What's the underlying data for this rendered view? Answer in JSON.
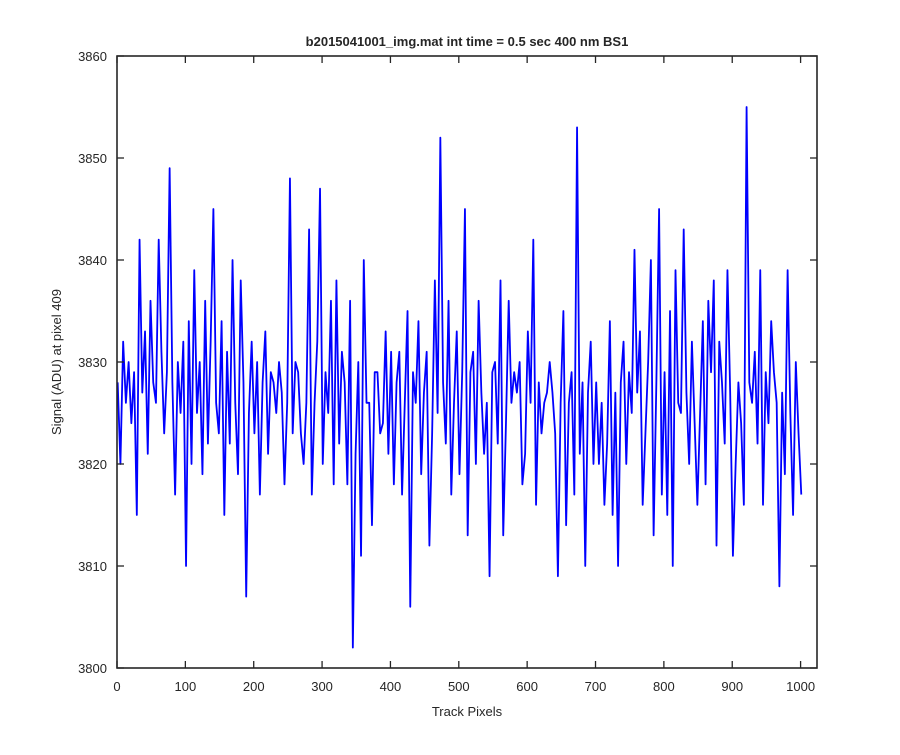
{
  "chart_data": {
    "type": "line",
    "title": "b2015041001_img.mat int time = 0.5 sec  400 nm BS1",
    "xlabel": "Track Pixels",
    "ylabel": "Signal (ADU) at pixel 409",
    "xlim": [
      0,
      1024
    ],
    "ylim": [
      3800,
      3860
    ],
    "x_ticks": [
      0,
      100,
      200,
      300,
      400,
      500,
      600,
      700,
      800,
      900,
      1000
    ],
    "y_ticks": [
      3800,
      3810,
      3820,
      3830,
      3840,
      3850,
      3860
    ],
    "grid": false,
    "line_color": "#0000ff",
    "series": [
      {
        "x_start": 1,
        "x_step": 4,
        "values": [
          3828,
          3820,
          3832,
          3826,
          3830,
          3824,
          3829,
          3815,
          3842,
          3827,
          3833,
          3821,
          3836,
          3828,
          3826,
          3842,
          3831,
          3823,
          3829,
          3849,
          3828,
          3817,
          3830,
          3825,
          3832,
          3810,
          3834,
          3820,
          3839,
          3825,
          3830,
          3819,
          3836,
          3822,
          3832,
          3845,
          3826,
          3823,
          3834,
          3815,
          3831,
          3822,
          3840,
          3826,
          3819,
          3838,
          3828,
          3807,
          3825,
          3832,
          3823,
          3830,
          3817,
          3828,
          3833,
          3821,
          3829,
          3828,
          3825,
          3830,
          3827,
          3818,
          3826,
          3848,
          3823,
          3830,
          3829,
          3823,
          3820,
          3826,
          3843,
          3817,
          3826,
          3832,
          3847,
          3820,
          3829,
          3825,
          3836,
          3818,
          3838,
          3822,
          3831,
          3828,
          3818,
          3836,
          3802,
          3821,
          3830,
          3811,
          3840,
          3826,
          3826,
          3814,
          3829,
          3829,
          3823,
          3824,
          3833,
          3821,
          3831,
          3818,
          3828,
          3831,
          3817,
          3826,
          3835,
          3806,
          3829,
          3826,
          3834,
          3819,
          3827,
          3831,
          3812,
          3823,
          3838,
          3825,
          3852,
          3828,
          3822,
          3836,
          3817,
          3826,
          3833,
          3819,
          3829,
          3845,
          3813,
          3829,
          3831,
          3820,
          3836,
          3827,
          3821,
          3826,
          3809,
          3829,
          3830,
          3822,
          3838,
          3813,
          3824,
          3836,
          3826,
          3829,
          3827,
          3830,
          3818,
          3821,
          3833,
          3826,
          3842,
          3816,
          3828,
          3823,
          3826,
          3827,
          3830,
          3827,
          3823,
          3809,
          3826,
          3835,
          3814,
          3826,
          3829,
          3817,
          3853,
          3821,
          3828,
          3810,
          3827,
          3832,
          3820,
          3828,
          3820,
          3826,
          3816,
          3822,
          3834,
          3815,
          3827,
          3810,
          3828,
          3832,
          3820,
          3829,
          3825,
          3841,
          3827,
          3833,
          3816,
          3823,
          3830,
          3840,
          3813,
          3828,
          3845,
          3817,
          3829,
          3815,
          3835,
          3810,
          3839,
          3826,
          3825,
          3843,
          3827,
          3820,
          3832,
          3824,
          3816,
          3825,
          3834,
          3818,
          3836,
          3829,
          3838,
          3812,
          3832,
          3828,
          3822,
          3839,
          3827,
          3811,
          3820,
          3828,
          3824,
          3816,
          3855,
          3828,
          3826,
          3831,
          3822,
          3839,
          3816,
          3829,
          3824,
          3834,
          3829,
          3826,
          3808,
          3827,
          3819,
          3839,
          3825,
          3815,
          3830,
          3823,
          3817
        ]
      }
    ]
  }
}
